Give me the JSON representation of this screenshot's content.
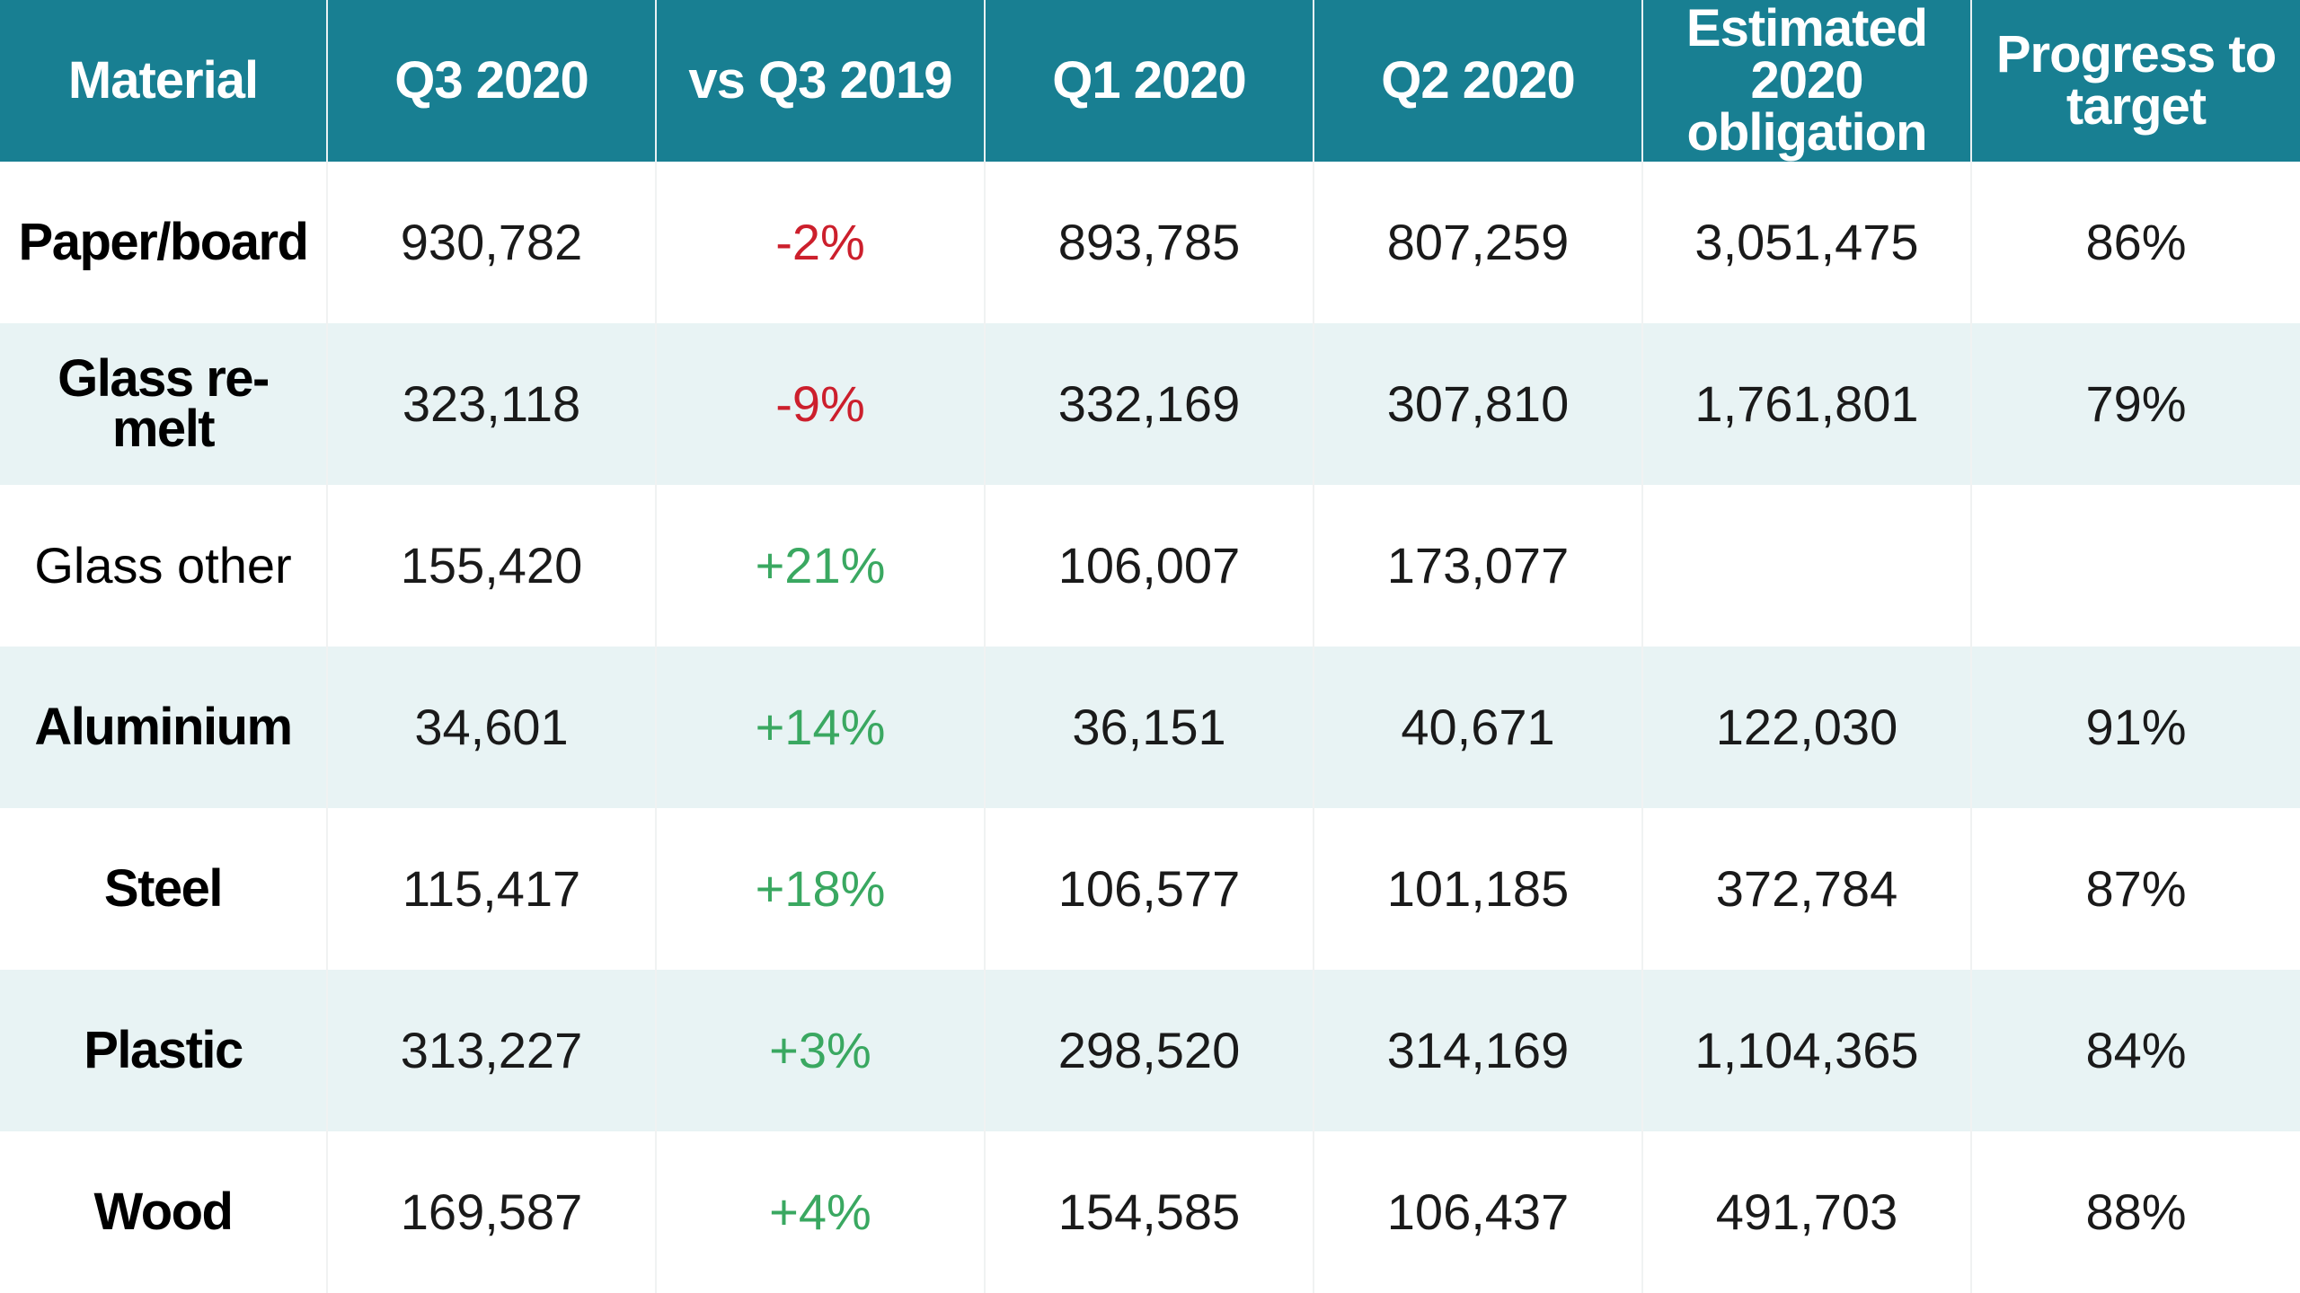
{
  "chart_data": {
    "type": "table",
    "columns": [
      "Material",
      "Q3 2020",
      "vs Q3 2019",
      "Q1 2020",
      "Q2 2020",
      "Estimated 2020 obligation",
      "Progress to target"
    ],
    "rows": [
      {
        "material": "Paper/board",
        "q3_2020": "930,782",
        "vs_q3_2019": "-2%",
        "q1_2020": "893,785",
        "q2_2020": "807,259",
        "obligation": "3,051,475",
        "progress": "86%"
      },
      {
        "material": "Glass re-melt",
        "q3_2020": "323,118",
        "vs_q3_2019": "-9%",
        "q1_2020": "332,169",
        "q2_2020": "307,810",
        "obligation": "1,761,801",
        "progress": "79%"
      },
      {
        "material": "Glass other",
        "q3_2020": "155,420",
        "vs_q3_2019": "+21%",
        "q1_2020": "106,007",
        "q2_2020": "173,077",
        "obligation": "",
        "progress": ""
      },
      {
        "material": "Aluminium",
        "q3_2020": "34,601",
        "vs_q3_2019": "+14%",
        "q1_2020": "36,151",
        "q2_2020": "40,671",
        "obligation": "122,030",
        "progress": "91%"
      },
      {
        "material": "Steel",
        "q3_2020": "115,417",
        "vs_q3_2019": "+18%",
        "q1_2020": "106,577",
        "q2_2020": "101,185",
        "obligation": "372,784",
        "progress": "87%"
      },
      {
        "material": "Plastic",
        "q3_2020": "313,227",
        "vs_q3_2019": "+3%",
        "q1_2020": "298,520",
        "q2_2020": "314,169",
        "obligation": "1,104,365",
        "progress": "84%"
      },
      {
        "material": "Wood",
        "q3_2020": "169,587",
        "vs_q3_2019": "+4%",
        "q1_2020": "154,585",
        "q2_2020": "106,437",
        "obligation": "491,703",
        "progress": "88%"
      }
    ]
  },
  "colors": {
    "header_bg": "#187f92",
    "alt_row_bg": "#e8f3f4",
    "negative": "#cc1f2c",
    "positive": "#3aa861"
  }
}
